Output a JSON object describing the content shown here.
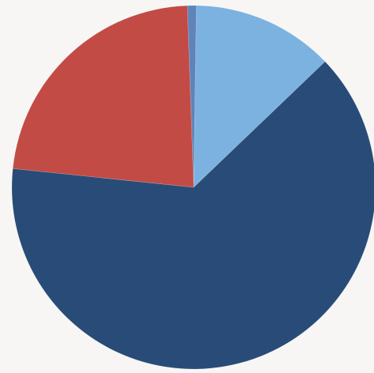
{
  "chart_data": {
    "type": "pie",
    "title": "",
    "legend": "none",
    "values": [
      0.8,
      12.6,
      63.8,
      22.8
    ],
    "colors": [
      "#5f84ba",
      "#7cb2df",
      "#284c77",
      "#c24b46"
    ]
  }
}
